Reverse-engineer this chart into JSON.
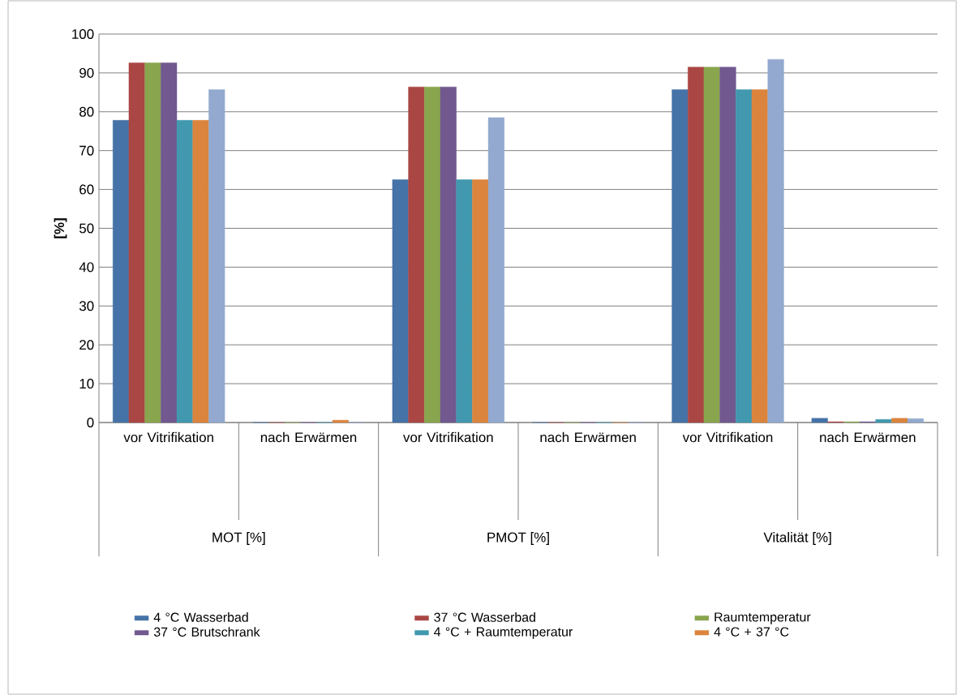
{
  "chart_data": {
    "type": "bar",
    "ylabel": "[%]",
    "categories": [
      "vor Vitrifikation",
      "nach Erwärmen",
      "vor Vitrifikation",
      "nach Erwärmen",
      "vor Vitrifikation",
      "nach Erwärmen"
    ],
    "annotations": [
      "MOT [%]",
      "PMOT [%]",
      "Vitalität [%]"
    ],
    "series": [
      {
        "name": "4 °C Wasserbad",
        "color": "#4572a7",
        "values": [
          77.8,
          0,
          62.5,
          0,
          85.7,
          1.1
        ]
      },
      {
        "name": "37 °C Wasserbad",
        "color": "#aa4643",
        "values": [
          92.6,
          0,
          86.4,
          0,
          91.5,
          0.2
        ]
      },
      {
        "name": "Raumtemperatur",
        "color": "#89a54e",
        "values": [
          92.6,
          0,
          86.4,
          0,
          91.5,
          0.2
        ]
      },
      {
        "name": "37 °C Brutschrank",
        "color": "#71588f",
        "values": [
          92.6,
          0,
          86.4,
          0,
          91.5,
          0.2
        ]
      },
      {
        "name": "4 °C + Raumtemperatur",
        "color": "#4198af",
        "values": [
          77.8,
          0,
          62.5,
          0,
          85.7,
          0.8
        ]
      },
      {
        "name": "4 °C + 37 °C",
        "color": "#db843d",
        "values": [
          77.8,
          0.6,
          62.5,
          0,
          85.7,
          1.1
        ]
      },
      {
        "color": "#93a9cf",
        "values": [
          85.7,
          0,
          78.5,
          0,
          93.5,
          1.0
        ]
      }
    ],
    "ylim": [
      0,
      100
    ],
    "yticks": [
      0,
      10,
      20,
      30,
      40,
      50,
      60,
      70,
      80,
      90,
      100
    ],
    "grid": "y",
    "legend": "bottom"
  }
}
